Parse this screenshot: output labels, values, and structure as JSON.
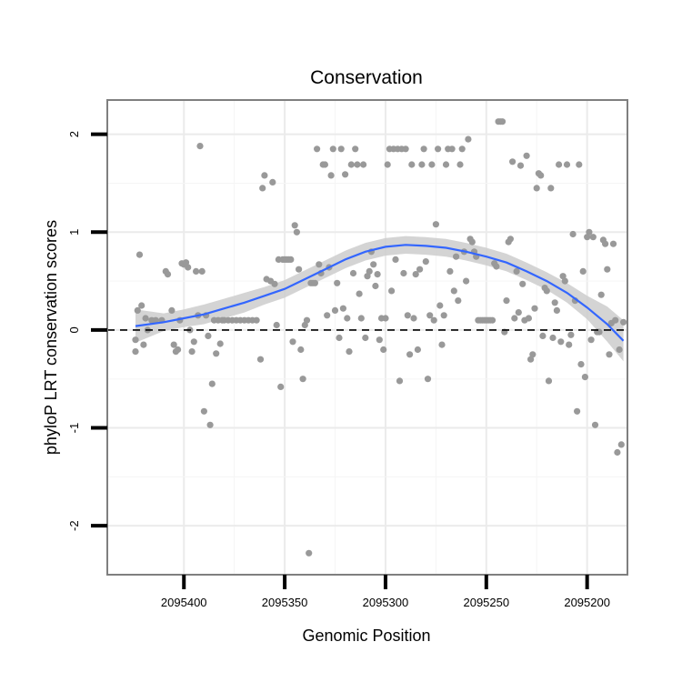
{
  "chart_data": {
    "type": "scatter",
    "title": "Conservation",
    "xlabel": "Genomic Position",
    "ylabel": "phyloP LRT conservation scores",
    "xlim": [
      2095180,
      2095438
    ],
    "ylim": [
      -2.5,
      2.35
    ],
    "x_reversed": true,
    "x_ticks": [
      2095400,
      2095350,
      2095300,
      2095250,
      2095200
    ],
    "x_tick_labels": [
      "2095400",
      "2095350",
      "2095300",
      "2095250",
      "2095200"
    ],
    "y_ticks": [
      -2,
      -1,
      0,
      1,
      2
    ],
    "y_tick_labels": [
      "-2",
      "-1",
      "0",
      "1",
      "2"
    ],
    "reference_line": {
      "y": 0,
      "style": "dashed"
    },
    "colors": {
      "points": "#999999",
      "smooth": "#3366ff",
      "band": "#cccccc",
      "ref": "#000000",
      "grid": "#ebebeb",
      "frame": "#7f7f7f"
    },
    "points": [
      [
        2095424,
        -0.1
      ],
      [
        2095424,
        -0.22
      ],
      [
        2095423,
        0.2
      ],
      [
        2095422,
        0.77
      ],
      [
        2095421,
        0.25
      ],
      [
        2095420,
        -0.15
      ],
      [
        2095419,
        0.12
      ],
      [
        2095418,
        0
      ],
      [
        2095416,
        0.1
      ],
      [
        2095414,
        0.1
      ],
      [
        2095411,
        0.1
      ],
      [
        2095409,
        0.6
      ],
      [
        2095408,
        0.57
      ],
      [
        2095406,
        0.2
      ],
      [
        2095405,
        -0.15
      ],
      [
        2095404,
        -0.22
      ],
      [
        2095403,
        -0.2
      ],
      [
        2095402,
        0.1
      ],
      [
        2095401,
        0.68
      ],
      [
        2095400,
        0.67
      ],
      [
        2095399,
        0.69
      ],
      [
        2095398,
        0.64
      ],
      [
        2095397,
        0
      ],
      [
        2095396,
        -0.22
      ],
      [
        2095395,
        -0.12
      ],
      [
        2095394,
        0.6
      ],
      [
        2095393,
        0.15
      ],
      [
        2095392,
        1.88
      ],
      [
        2095391,
        0.6
      ],
      [
        2095390,
        -0.83
      ],
      [
        2095389,
        0.15
      ],
      [
        2095388,
        -0.06
      ],
      [
        2095387,
        -0.97
      ],
      [
        2095386,
        -0.55
      ],
      [
        2095385,
        0.1
      ],
      [
        2095384,
        -0.24
      ],
      [
        2095383,
        0.1
      ],
      [
        2095382,
        -0.14
      ],
      [
        2095381,
        0.1
      ],
      [
        2095380,
        0.1
      ],
      [
        2095378,
        0.1
      ],
      [
        2095376,
        0.1
      ],
      [
        2095374,
        0.1
      ],
      [
        2095372,
        0.1
      ],
      [
        2095370,
        0.1
      ],
      [
        2095368,
        0.1
      ],
      [
        2095366,
        0.1
      ],
      [
        2095364,
        0.1
      ],
      [
        2095362,
        -0.3
      ],
      [
        2095361,
        1.45
      ],
      [
        2095360,
        1.58
      ],
      [
        2095359,
        0.52
      ],
      [
        2095357,
        0.5
      ],
      [
        2095356,
        1.51
      ],
      [
        2095355,
        0.47
      ],
      [
        2095354,
        0.05
      ],
      [
        2095353,
        0.72
      ],
      [
        2095352,
        -0.58
      ],
      [
        2095351,
        0.72
      ],
      [
        2095350,
        0.72
      ],
      [
        2095349,
        0.72
      ],
      [
        2095348,
        0.72
      ],
      [
        2095347,
        0.72
      ],
      [
        2095346,
        -0.12
      ],
      [
        2095345,
        1.07
      ],
      [
        2095344,
        1.0
      ],
      [
        2095343,
        0.62
      ],
      [
        2095342,
        -0.2
      ],
      [
        2095341,
        -0.5
      ],
      [
        2095340,
        0.05
      ],
      [
        2095339,
        0.1
      ],
      [
        2095338,
        -2.28
      ],
      [
        2095337,
        0.48
      ],
      [
        2095336,
        0.48
      ],
      [
        2095335,
        0.48
      ],
      [
        2095334,
        1.85
      ],
      [
        2095333,
        0.67
      ],
      [
        2095332,
        0.58
      ],
      [
        2095331,
        1.69
      ],
      [
        2095330,
        1.69
      ],
      [
        2095329,
        0.15
      ],
      [
        2095328,
        0.64
      ],
      [
        2095327,
        1.58
      ],
      [
        2095326,
        1.85
      ],
      [
        2095325,
        0.2
      ],
      [
        2095324,
        0.48
      ],
      [
        2095323,
        -0.08
      ],
      [
        2095322,
        1.85
      ],
      [
        2095321,
        0.22
      ],
      [
        2095320,
        1.59
      ],
      [
        2095319,
        0.12
      ],
      [
        2095318,
        -0.22
      ],
      [
        2095317,
        1.69
      ],
      [
        2095316,
        0.58
      ],
      [
        2095315,
        1.85
      ],
      [
        2095314,
        1.69
      ],
      [
        2095313,
        0.37
      ],
      [
        2095312,
        0.12
      ],
      [
        2095311,
        1.69
      ],
      [
        2095310,
        -0.08
      ],
      [
        2095309,
        0.55
      ],
      [
        2095308,
        0.6
      ],
      [
        2095307,
        0.8
      ],
      [
        2095306,
        0.67
      ],
      [
        2095305,
        0.45
      ],
      [
        2095304,
        0.57
      ],
      [
        2095303,
        -0.1
      ],
      [
        2095302,
        0.12
      ],
      [
        2095301,
        -0.2
      ],
      [
        2095300,
        0.12
      ],
      [
        2095299,
        1.69
      ],
      [
        2095298,
        1.85
      ],
      [
        2095297,
        0.4
      ],
      [
        2095296,
        1.85
      ],
      [
        2095295,
        0.72
      ],
      [
        2095294,
        1.85
      ],
      [
        2095293,
        -0.52
      ],
      [
        2095292,
        1.85
      ],
      [
        2095291,
        0.58
      ],
      [
        2095290,
        1.85
      ],
      [
        2095289,
        0.15
      ],
      [
        2095288,
        -0.25
      ],
      [
        2095287,
        1.69
      ],
      [
        2095286,
        0.12
      ],
      [
        2095285,
        0.57
      ],
      [
        2095284,
        -0.2
      ],
      [
        2095283,
        0.62
      ],
      [
        2095282,
        1.69
      ],
      [
        2095281,
        1.85
      ],
      [
        2095280,
        0.7
      ],
      [
        2095279,
        -0.5
      ],
      [
        2095278,
        0.15
      ],
      [
        2095277,
        1.69
      ],
      [
        2095276,
        0.1
      ],
      [
        2095275,
        1.08
      ],
      [
        2095274,
        1.85
      ],
      [
        2095273,
        0.25
      ],
      [
        2095272,
        -0.15
      ],
      [
        2095271,
        0.15
      ],
      [
        2095270,
        1.69
      ],
      [
        2095269,
        1.85
      ],
      [
        2095268,
        0.6
      ],
      [
        2095267,
        1.85
      ],
      [
        2095266,
        0.4
      ],
      [
        2095265,
        0.75
      ],
      [
        2095264,
        0.3
      ],
      [
        2095263,
        1.69
      ],
      [
        2095262,
        1.85
      ],
      [
        2095261,
        0.8
      ],
      [
        2095260,
        0.5
      ],
      [
        2095259,
        1.95
      ],
      [
        2095258,
        0.93
      ],
      [
        2095257,
        0.9
      ],
      [
        2095256,
        0.8
      ],
      [
        2095255,
        0.75
      ],
      [
        2095254,
        0.1
      ],
      [
        2095253,
        0.1
      ],
      [
        2095252,
        0.1
      ],
      [
        2095251,
        0.1
      ],
      [
        2095250,
        0.1
      ],
      [
        2095249,
        0.1
      ],
      [
        2095248,
        0.1
      ],
      [
        2095247,
        0.1
      ],
      [
        2095246,
        0.68
      ],
      [
        2095245,
        0.65
      ],
      [
        2095244,
        2.13
      ],
      [
        2095243,
        2.13
      ],
      [
        2095242,
        2.13
      ],
      [
        2095241,
        -0.02
      ],
      [
        2095240,
        0.3
      ],
      [
        2095239,
        0.9
      ],
      [
        2095238,
        0.93
      ],
      [
        2095237,
        1.72
      ],
      [
        2095236,
        0.12
      ],
      [
        2095235,
        0.6
      ],
      [
        2095234,
        0.18
      ],
      [
        2095233,
        1.68
      ],
      [
        2095232,
        0.47
      ],
      [
        2095231,
        0.1
      ],
      [
        2095230,
        1.78
      ],
      [
        2095229,
        0.12
      ],
      [
        2095228,
        -0.3
      ],
      [
        2095227,
        -0.25
      ],
      [
        2095226,
        0.22
      ],
      [
        2095225,
        1.45
      ],
      [
        2095224,
        1.6
      ],
      [
        2095223,
        1.58
      ],
      [
        2095222,
        -0.06
      ],
      [
        2095221,
        0.43
      ],
      [
        2095220,
        0.4
      ],
      [
        2095219,
        -0.52
      ],
      [
        2095218,
        1.45
      ],
      [
        2095217,
        -0.08
      ],
      [
        2095216,
        0.28
      ],
      [
        2095215,
        0.2
      ],
      [
        2095214,
        1.69
      ],
      [
        2095213,
        -0.12
      ],
      [
        2095212,
        0.55
      ],
      [
        2095211,
        0.5
      ],
      [
        2095210,
        1.69
      ],
      [
        2095209,
        -0.15
      ],
      [
        2095208,
        -0.05
      ],
      [
        2095207,
        0.98
      ],
      [
        2095206,
        0.3
      ],
      [
        2095205,
        -0.83
      ],
      [
        2095204,
        1.69
      ],
      [
        2095203,
        -0.35
      ],
      [
        2095202,
        0.6
      ],
      [
        2095201,
        -0.48
      ],
      [
        2095200,
        0.95
      ],
      [
        2095199,
        1.0
      ],
      [
        2095198,
        -0.1
      ],
      [
        2095197,
        0.95
      ],
      [
        2095196,
        -0.97
      ],
      [
        2095195,
        -0.02
      ],
      [
        2095194,
        -0.02
      ],
      [
        2095193,
        0.36
      ],
      [
        2095192,
        0.92
      ],
      [
        2095191,
        0.88
      ],
      [
        2095190,
        0.62
      ],
      [
        2095189,
        -0.25
      ],
      [
        2095188,
        0.07
      ],
      [
        2095187,
        0.88
      ],
      [
        2095186,
        0.1
      ],
      [
        2095185,
        -1.25
      ],
      [
        2095184,
        -0.2
      ],
      [
        2095183,
        -1.17
      ],
      [
        2095182,
        0.08
      ]
    ],
    "smooth": {
      "x": [
        2095424,
        2095410,
        2095400,
        2095390,
        2095380,
        2095370,
        2095360,
        2095350,
        2095340,
        2095330,
        2095320,
        2095310,
        2095300,
        2095290,
        2095280,
        2095270,
        2095260,
        2095250,
        2095240,
        2095230,
        2095220,
        2095210,
        2095200,
        2095190,
        2095182
      ],
      "y": [
        0.04,
        0.08,
        0.12,
        0.16,
        0.22,
        0.28,
        0.35,
        0.42,
        0.52,
        0.62,
        0.72,
        0.8,
        0.85,
        0.87,
        0.86,
        0.84,
        0.8,
        0.75,
        0.69,
        0.6,
        0.5,
        0.38,
        0.23,
        0.06,
        -0.11
      ],
      "lower": [
        -0.13,
        -0.01,
        0.03,
        0.06,
        0.12,
        0.18,
        0.26,
        0.33,
        0.43,
        0.53,
        0.63,
        0.71,
        0.76,
        0.78,
        0.77,
        0.75,
        0.71,
        0.66,
        0.6,
        0.51,
        0.41,
        0.28,
        0.11,
        -0.12,
        -0.32
      ],
      "upper": [
        0.21,
        0.17,
        0.21,
        0.26,
        0.32,
        0.38,
        0.44,
        0.51,
        0.61,
        0.71,
        0.81,
        0.89,
        0.94,
        0.96,
        0.95,
        0.93,
        0.89,
        0.84,
        0.78,
        0.69,
        0.59,
        0.48,
        0.35,
        0.24,
        0.1
      ]
    }
  }
}
